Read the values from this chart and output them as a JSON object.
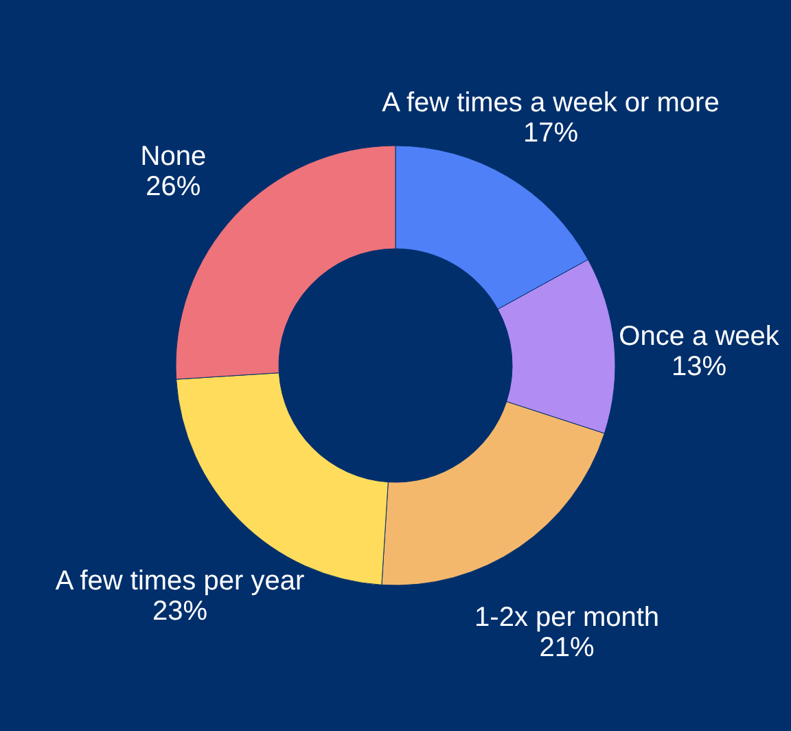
{
  "chart_data": {
    "type": "donut",
    "categories": [
      "A few times a week or more",
      "Once a week",
      "1-2x per month",
      "A few times per year",
      "None"
    ],
    "values": [
      17,
      13,
      21,
      23,
      26
    ],
    "value_labels": [
      "17%",
      "13%",
      "21%",
      "23%",
      "26%"
    ],
    "colors": [
      "#4f80f7",
      "#b18cf2",
      "#f4b86c",
      "#ffdc5c",
      "#ee737b"
    ]
  }
}
